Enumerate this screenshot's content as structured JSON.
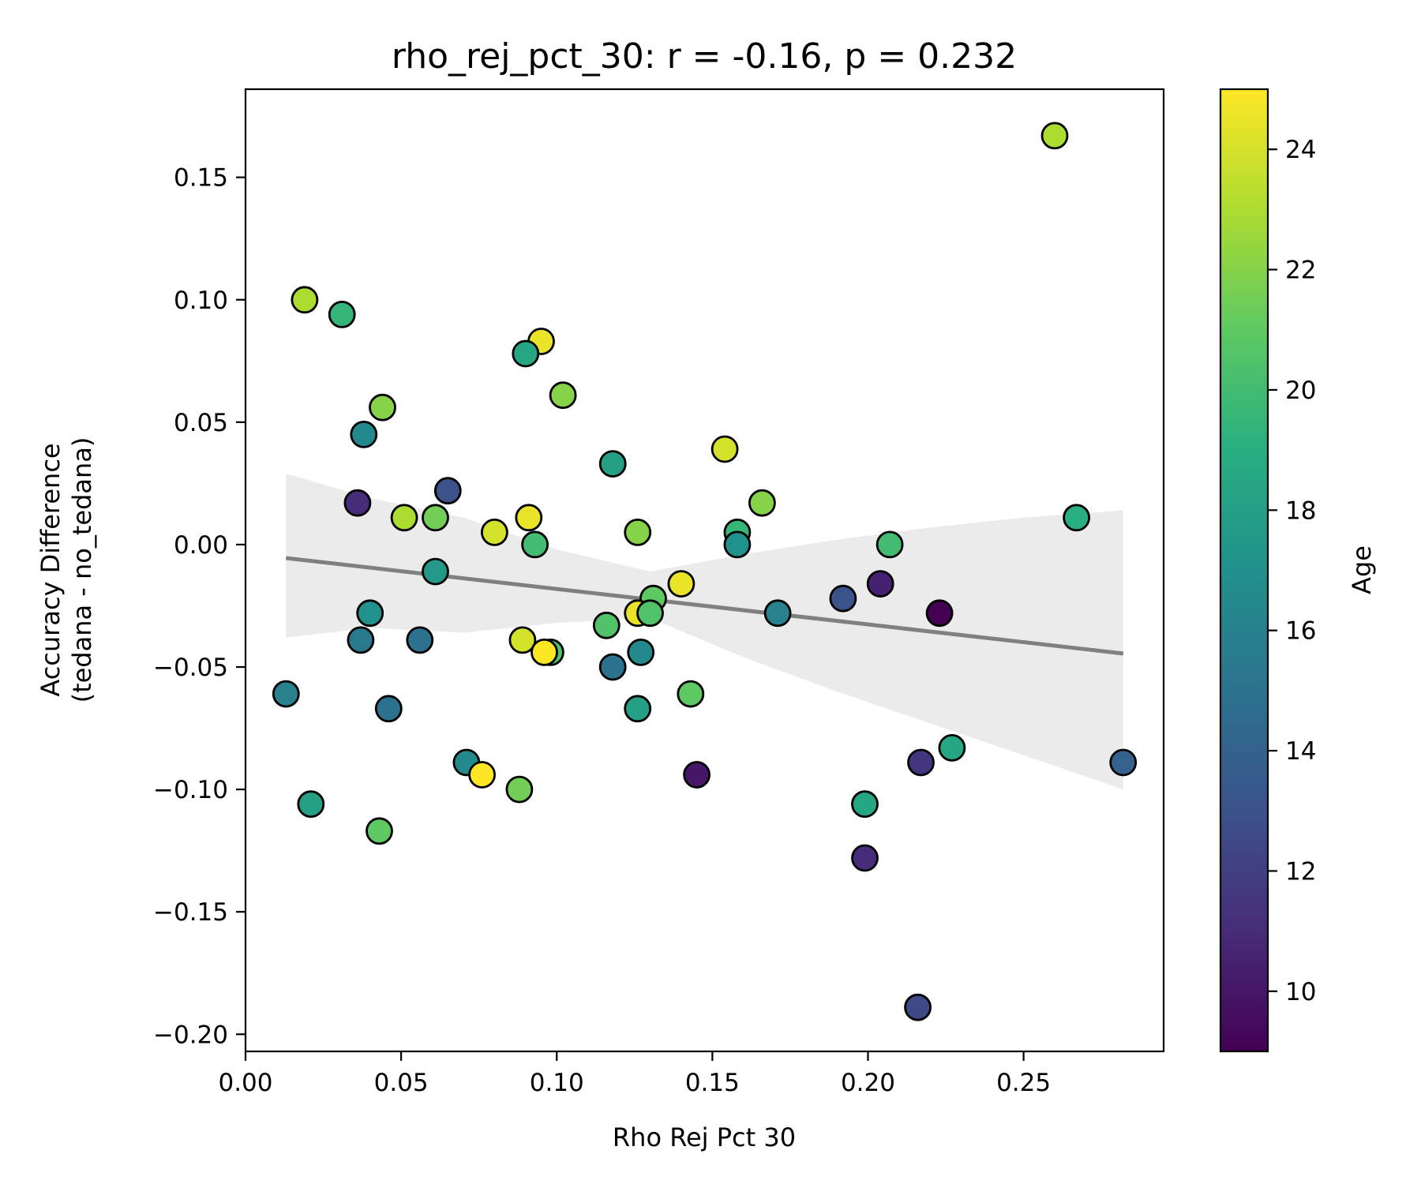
{
  "chart_data": {
    "type": "scatter",
    "title": "rho_rej_pct_30: r = -0.16, p = 0.232",
    "xlabel": "Rho Rej Pct 30",
    "ylabel": [
      "Accuracy Difference",
      "(tedana - no_tedana)"
    ],
    "xlim": [
      0.0,
      0.295
    ],
    "ylim": [
      -0.207,
      0.186
    ],
    "xticks": [
      0.0,
      0.05,
      0.1,
      0.15,
      0.2,
      0.25
    ],
    "xtick_labels": [
      "0.00",
      "0.05",
      "0.10",
      "0.15",
      "0.20",
      "0.25"
    ],
    "yticks": [
      0.15,
      0.1,
      0.05,
      0.0,
      -0.05,
      -0.1,
      -0.15,
      -0.2
    ],
    "ytick_labels": [
      "0.15",
      "0.10",
      "0.05",
      "0.00",
      "−0.05",
      "−0.10",
      "−0.15",
      "−0.20"
    ],
    "colorbar": {
      "label": "Age",
      "colormap": "viridis",
      "range": [
        9,
        25
      ],
      "ticks": [
        10,
        12,
        14,
        16,
        18,
        20,
        22,
        24
      ],
      "tick_labels": [
        "10",
        "12",
        "14",
        "16",
        "18",
        "20",
        "22",
        "24"
      ]
    },
    "regression": {
      "x": [
        0.013,
        0.282
      ],
      "y": [
        -0.0055,
        -0.0445
      ],
      "color": "#808080",
      "ci_band": {
        "x": [
          0.013,
          0.04,
          0.07,
          0.1,
          0.13,
          0.16,
          0.19,
          0.22,
          0.25,
          0.282
        ],
        "upper": [
          0.029,
          0.019,
          0.011,
          -0.002,
          -0.011,
          -0.004,
          0.002,
          0.007,
          0.011,
          0.014
        ],
        "lower": [
          -0.038,
          -0.034,
          -0.036,
          -0.032,
          -0.03,
          -0.046,
          -0.06,
          -0.073,
          -0.086,
          -0.1
        ]
      },
      "ci_color": "#ebebeb"
    },
    "points": [
      {
        "x": 0.26,
        "y": 0.167,
        "age": 23.0
      },
      {
        "x": 0.019,
        "y": 0.1,
        "age": 23.0
      },
      {
        "x": 0.031,
        "y": 0.094,
        "age": 19.5
      },
      {
        "x": 0.095,
        "y": 0.083,
        "age": 24.5
      },
      {
        "x": 0.09,
        "y": 0.078,
        "age": 18.5
      },
      {
        "x": 0.102,
        "y": 0.061,
        "age": 22.0
      },
      {
        "x": 0.044,
        "y": 0.056,
        "age": 22.0
      },
      {
        "x": 0.038,
        "y": 0.045,
        "age": 16.5
      },
      {
        "x": 0.154,
        "y": 0.039,
        "age": 24.0
      },
      {
        "x": 0.118,
        "y": 0.033,
        "age": 18.0
      },
      {
        "x": 0.065,
        "y": 0.022,
        "age": 13.0
      },
      {
        "x": 0.036,
        "y": 0.017,
        "age": 11.0
      },
      {
        "x": 0.166,
        "y": 0.017,
        "age": 22.0
      },
      {
        "x": 0.051,
        "y": 0.011,
        "age": 23.0
      },
      {
        "x": 0.061,
        "y": 0.011,
        "age": 21.5
      },
      {
        "x": 0.091,
        "y": 0.011,
        "age": 24.5
      },
      {
        "x": 0.267,
        "y": 0.011,
        "age": 19.0
      },
      {
        "x": 0.08,
        "y": 0.005,
        "age": 24.0
      },
      {
        "x": 0.126,
        "y": 0.005,
        "age": 22.0
      },
      {
        "x": 0.158,
        "y": 0.005,
        "age": 19.5
      },
      {
        "x": 0.093,
        "y": 0.0,
        "age": 20.0
      },
      {
        "x": 0.158,
        "y": 0.0,
        "age": 17.0
      },
      {
        "x": 0.207,
        "y": 0.0,
        "age": 20.0
      },
      {
        "x": 0.061,
        "y": -0.011,
        "age": 17.5
      },
      {
        "x": 0.14,
        "y": -0.016,
        "age": 24.5
      },
      {
        "x": 0.204,
        "y": -0.016,
        "age": 10.5
      },
      {
        "x": 0.131,
        "y": -0.022,
        "age": 21.0
      },
      {
        "x": 0.192,
        "y": -0.022,
        "age": 13.0
      },
      {
        "x": 0.04,
        "y": -0.028,
        "age": 17.0
      },
      {
        "x": 0.126,
        "y": -0.028,
        "age": 24.5
      },
      {
        "x": 0.13,
        "y": -0.028,
        "age": 20.5
      },
      {
        "x": 0.171,
        "y": -0.028,
        "age": 16.0
      },
      {
        "x": 0.223,
        "y": -0.028,
        "age": 9.0
      },
      {
        "x": 0.116,
        "y": -0.033,
        "age": 20.5
      },
      {
        "x": 0.037,
        "y": -0.039,
        "age": 15.5
      },
      {
        "x": 0.056,
        "y": -0.039,
        "age": 15.0
      },
      {
        "x": 0.089,
        "y": -0.039,
        "age": 24.0
      },
      {
        "x": 0.098,
        "y": -0.044,
        "age": 20.5
      },
      {
        "x": 0.096,
        "y": -0.044,
        "age": 25.0
      },
      {
        "x": 0.127,
        "y": -0.044,
        "age": 16.5
      },
      {
        "x": 0.118,
        "y": -0.05,
        "age": 15.0
      },
      {
        "x": 0.013,
        "y": -0.061,
        "age": 16.0
      },
      {
        "x": 0.143,
        "y": -0.061,
        "age": 21.0
      },
      {
        "x": 0.046,
        "y": -0.067,
        "age": 15.0
      },
      {
        "x": 0.126,
        "y": -0.067,
        "age": 18.0
      },
      {
        "x": 0.227,
        "y": -0.083,
        "age": 18.5
      },
      {
        "x": 0.071,
        "y": -0.089,
        "age": 16.5
      },
      {
        "x": 0.217,
        "y": -0.089,
        "age": 11.5
      },
      {
        "x": 0.282,
        "y": -0.089,
        "age": 14.0
      },
      {
        "x": 0.076,
        "y": -0.094,
        "age": 25.0
      },
      {
        "x": 0.145,
        "y": -0.094,
        "age": 10.0
      },
      {
        "x": 0.088,
        "y": -0.1,
        "age": 21.5
      },
      {
        "x": 0.021,
        "y": -0.106,
        "age": 18.0
      },
      {
        "x": 0.199,
        "y": -0.106,
        "age": 18.5
      },
      {
        "x": 0.043,
        "y": -0.117,
        "age": 21.0
      },
      {
        "x": 0.199,
        "y": -0.128,
        "age": 11.0
      },
      {
        "x": 0.216,
        "y": -0.189,
        "age": 12.5
      }
    ]
  }
}
